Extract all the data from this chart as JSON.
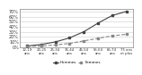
{
  "categories": [
    "12-19\nans",
    "20-25\nans",
    "25-34\nans",
    "35-44\nans",
    "45-54\nans",
    "55-64\nans",
    "65-74\nans",
    "75 ans\net plus"
  ],
  "men": [
    2,
    5,
    10,
    18,
    30,
    47,
    62,
    70
  ],
  "women": [
    1,
    2,
    4,
    7,
    12,
    17,
    22,
    25
  ],
  "men_color": "#444444",
  "women_color": "#888888",
  "men_label": "Hommes",
  "women_label": "Femmes",
  "ylim": [
    0,
    75
  ],
  "yticks": [
    0,
    10,
    20,
    30,
    40,
    50,
    60,
    70
  ],
  "ytick_labels": [
    "0%",
    "10%",
    "20%",
    "30%",
    "40%",
    "50%",
    "60%",
    "70%"
  ],
  "background_color": "#ffffff",
  "grid_color": "#cccccc"
}
